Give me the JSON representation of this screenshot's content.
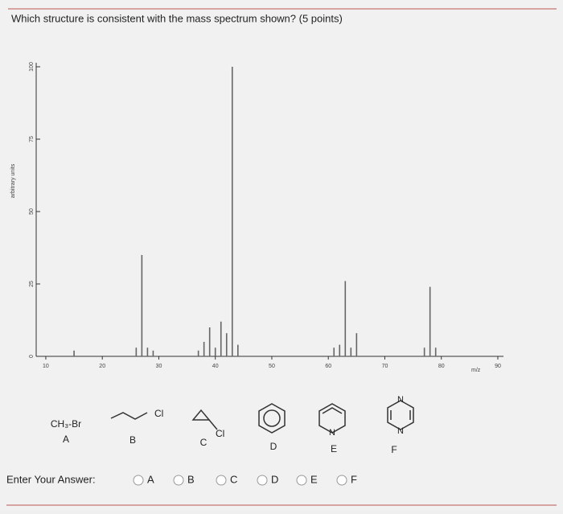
{
  "question": "Which structure is consistent with the mass spectrum shown? (5 points)",
  "chart_data": {
    "type": "bar",
    "x": [
      15,
      26,
      27,
      28,
      29,
      37,
      38,
      39,
      40,
      41,
      42,
      43,
      44,
      61,
      62,
      63,
      64,
      65,
      77,
      78,
      79
    ],
    "values": [
      2,
      3,
      35,
      3,
      2,
      2,
      5,
      10,
      3,
      12,
      8,
      100,
      4,
      3,
      4,
      26,
      3,
      8,
      3,
      24,
      3
    ],
    "color": "#666666",
    "xlim": [
      8.3,
      91
    ],
    "ylim": [
      0,
      100
    ],
    "xticks": [
      10,
      20,
      30,
      40,
      50,
      60,
      70,
      80,
      90
    ],
    "yticks": [
      0,
      25,
      50,
      75,
      100
    ],
    "x_label": "m/z",
    "y_label": "arbitrary units"
  },
  "structures": [
    {
      "formula": "CH₃-Br",
      "label": "A"
    },
    {
      "atom": "Cl",
      "label": "B"
    },
    {
      "atom": "Cl",
      "label": "C"
    },
    {
      "label": "D"
    },
    {
      "atom": "N",
      "label": "E"
    },
    {
      "atoms": [
        "N",
        "N"
      ],
      "label": "F"
    }
  ],
  "answer_prompt": "Enter Your Answer:",
  "choices": [
    "A",
    "B",
    "C",
    "D",
    "E",
    "F"
  ]
}
